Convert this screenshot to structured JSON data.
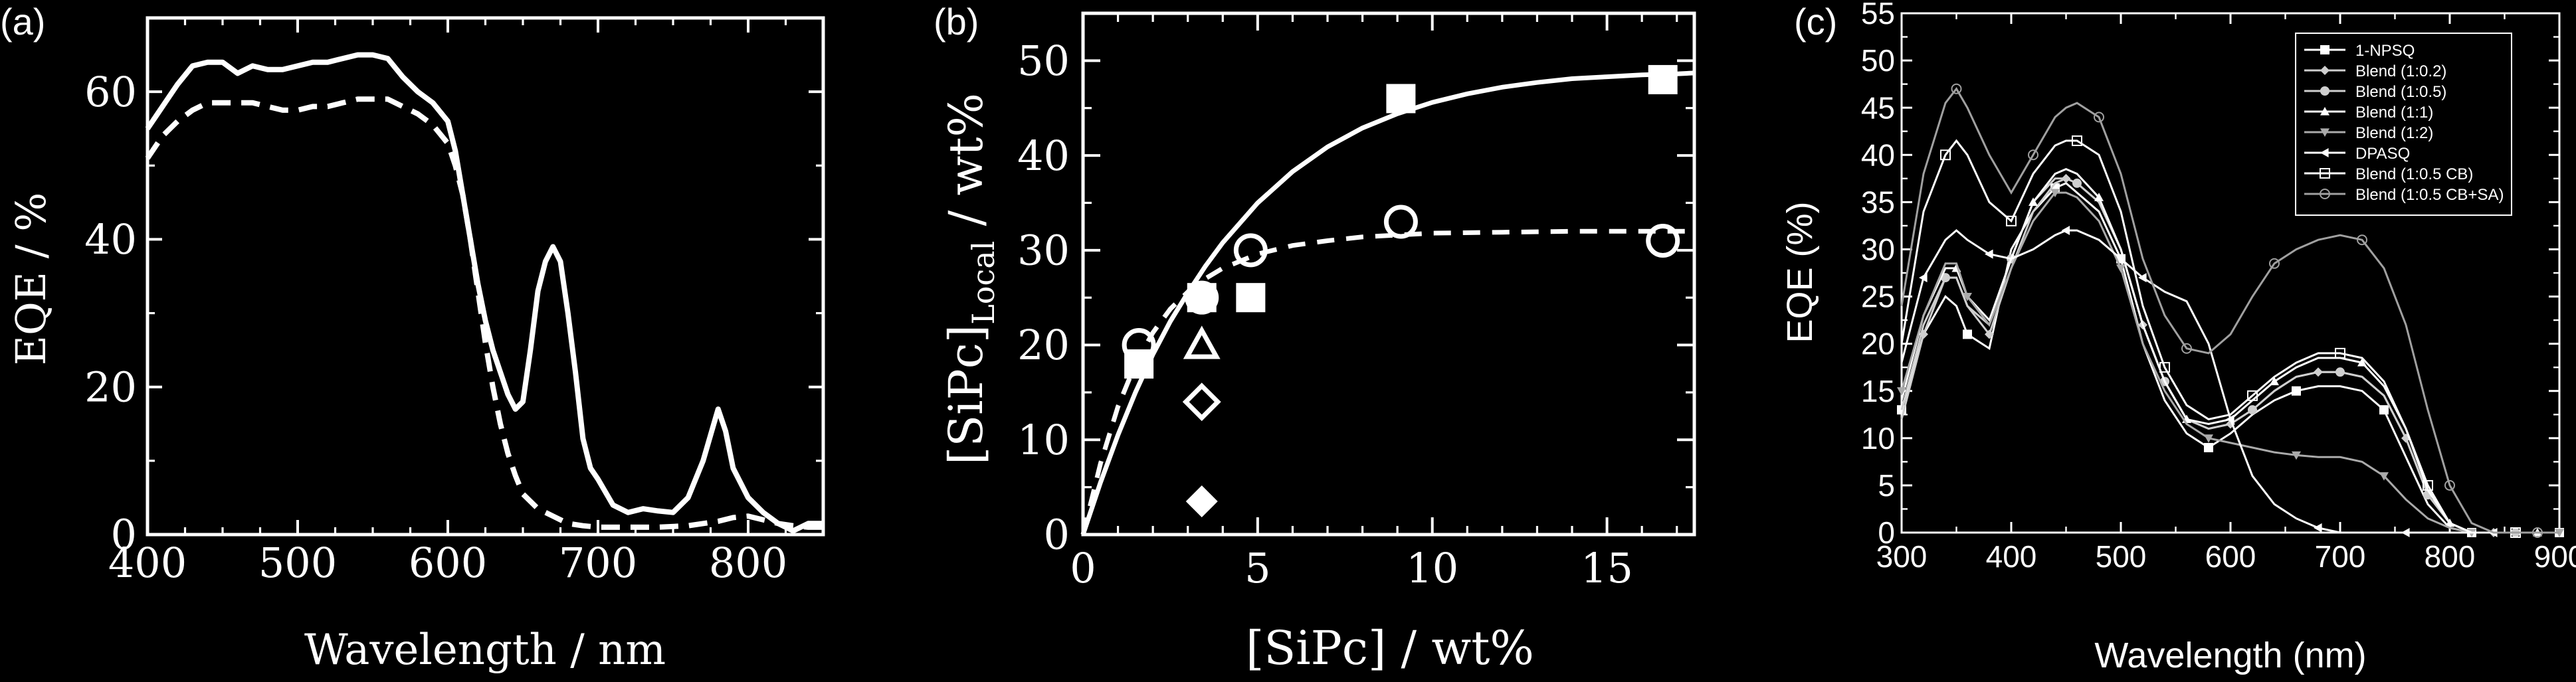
{
  "panels": [
    {
      "label": "(a)",
      "chart_data": {
        "type": "line",
        "title": "",
        "xlabel": "Wavelength / nm",
        "ylabel": "EQE / %",
        "xlim": [
          400,
          850
        ],
        "ylim": [
          0,
          70
        ],
        "xticks": [
          "400",
          "500",
          "600",
          "700",
          "800"
        ],
        "yticks": [
          "0",
          "20",
          "40",
          "60"
        ],
        "grid": false,
        "series": [
          {
            "style": "solid",
            "color": "#ffffff",
            "x": [
              400,
              410,
              420,
              430,
              440,
              450,
              460,
              470,
              480,
              490,
              500,
              510,
              520,
              530,
              540,
              550,
              560,
              570,
              580,
              590,
              600,
              605,
              610,
              615,
              620,
              625,
              630,
              635,
              640,
              645,
              650,
              655,
              660,
              665,
              670,
              675,
              680,
              685,
              690,
              695,
              700,
              710,
              720,
              730,
              740,
              750,
              760,
              770,
              780,
              785,
              790,
              800,
              810,
              820,
              830,
              840,
              850
            ],
            "y": [
              55,
              58,
              61,
              63.5,
              64,
              64,
              62.5,
              63.5,
              63,
              63,
              63.5,
              64,
              64,
              64.5,
              65,
              65,
              64.5,
              62,
              60,
              58.5,
              56,
              52,
              46,
              40,
              34,
              29,
              25,
              22,
              19,
              17,
              18,
              25,
              33,
              37,
              39,
              37,
              30,
              22,
              13,
              9,
              7.5,
              4,
              3,
              3.5,
              3.2,
              3,
              5,
              10,
              17,
              14,
              9,
              5,
              3,
              1.5,
              0.5,
              1.5,
              1.5
            ]
          },
          {
            "style": "dashed",
            "color": "#ffffff",
            "x": [
              400,
              410,
              420,
              430,
              440,
              450,
              460,
              470,
              480,
              490,
              500,
              510,
              520,
              530,
              540,
              550,
              560,
              570,
              580,
              590,
              600,
              605,
              610,
              615,
              620,
              625,
              630,
              635,
              640,
              645,
              650,
              660,
              670,
              680,
              690,
              700,
              720,
              740,
              760,
              780,
              790,
              800,
              810,
              820,
              830,
              840,
              850
            ],
            "y": [
              51,
              54,
              56,
              57.5,
              58.5,
              58.5,
              58.5,
              58.5,
              58,
              57.5,
              57.5,
              58,
              58,
              58.5,
              59,
              59,
              59,
              58,
              57,
              55.5,
              53,
              50,
              46,
              40,
              33,
              26,
              20,
              15,
              11,
              8,
              5.5,
              3.5,
              2.5,
              1.5,
              1.2,
              1,
              1,
              1,
              1.2,
              1.8,
              2.3,
              2.5,
              2,
              1.5,
              1.2,
              1,
              1
            ]
          }
        ]
      }
    },
    {
      "label": "(b)",
      "chart_data": {
        "type": "scatter",
        "title": "",
        "xlabel": "[SiPc] / wt%",
        "ylabel_main": "[SiPc]",
        "ylabel_sub": "Local",
        "ylabel_tail": " / wt%",
        "xlim": [
          0,
          17.5
        ],
        "ylim": [
          0,
          55
        ],
        "xticks": [
          "0",
          "5",
          "10",
          "15"
        ],
        "yticks": [
          "0",
          "10",
          "20",
          "30",
          "40",
          "50"
        ],
        "grid": false,
        "series": [
          {
            "marker": "filled-square",
            "x": [
              1.6,
              3.4,
              4.8,
              9.1,
              16.6
            ],
            "y": [
              18,
              25,
              25,
              46,
              48
            ]
          },
          {
            "marker": "open-circle",
            "x": [
              1.6,
              3.4,
              4.8,
              9.1,
              16.6
            ],
            "y": [
              20,
              25,
              30,
              33,
              31
            ]
          },
          {
            "marker": "open-triangle",
            "x": [
              3.4
            ],
            "y": [
              20
            ]
          },
          {
            "marker": "open-diamond",
            "x": [
              3.4
            ],
            "y": [
              14
            ]
          },
          {
            "marker": "filled-diamond",
            "x": [
              3.4
            ],
            "y": [
              3.5
            ]
          }
        ],
        "fits": [
          {
            "style": "solid",
            "x": [
              0,
              0.5,
              1,
              1.5,
              2,
              2.5,
              3,
              3.5,
              4,
              5,
              6,
              7,
              8,
              9,
              10,
              11,
              12,
              13,
              14,
              15,
              16,
              17,
              17.5
            ],
            "y": [
              0,
              5.5,
              10.5,
              15,
              19,
              22.5,
              25.5,
              28.3,
              30.8,
              35,
              38.3,
              40.9,
              42.9,
              44.4,
              45.6,
              46.5,
              47.2,
              47.7,
              48.1,
              48.3,
              48.5,
              48.6,
              48.7
            ]
          },
          {
            "style": "dashed",
            "x": [
              0,
              0.5,
              1,
              1.5,
              2,
              2.5,
              3,
              3.5,
              4,
              5,
              6,
              7,
              8,
              9,
              10,
              12,
              14,
              16,
              17.5
            ],
            "y": [
              0,
              7.5,
              13.5,
              18,
              21.3,
              23.8,
              25.6,
              27,
              28.1,
              29.6,
              30.5,
              31,
              31.4,
              31.6,
              31.8,
              31.9,
              32,
              32,
              32
            ]
          }
        ]
      }
    },
    {
      "label": "(c)",
      "chart_data": {
        "type": "line",
        "title": "",
        "xlabel": "Wavelength (nm)",
        "ylabel": "EQE (%)",
        "xlim": [
          300,
          900
        ],
        "ylim": [
          0,
          55
        ],
        "xticks": [
          "300",
          "400",
          "500",
          "600",
          "700",
          "800",
          "900"
        ],
        "yticks": [
          "0",
          "5",
          "10",
          "15",
          "20",
          "25",
          "30",
          "35",
          "40",
          "45",
          "50",
          "55"
        ],
        "grid": false,
        "legend_position": "top-right",
        "x": [
          300,
          320,
          340,
          350,
          360,
          380,
          400,
          420,
          440,
          450,
          460,
          480,
          500,
          520,
          540,
          560,
          580,
          600,
          620,
          640,
          660,
          680,
          700,
          720,
          740,
          760,
          780,
          800,
          820,
          840,
          860,
          880,
          900
        ],
        "series": [
          {
            "name": "1-NPSQ",
            "marker": "filled-square",
            "color": "#ffffff",
            "y": [
              13,
              21,
              25,
              24,
              21,
              19.5,
              30,
              34,
              36.5,
              37,
              36,
              34,
              29,
              20,
              14,
              10.5,
              9,
              10.5,
              12.5,
              14,
              15,
              15.5,
              15.5,
              15,
              13,
              8,
              3,
              0.5,
              0,
              0,
              0,
              0,
              0
            ]
          },
          {
            "name": "Blend (1:0.2)",
            "marker": "filled-diamond",
            "color": "#cfcfcf",
            "y": [
              12,
              21,
              27,
              27,
              24,
              21,
              28,
              34,
              37,
              37.5,
              37,
              35,
              30,
              22,
              16,
              12,
              11,
              11.5,
              13,
              15,
              16.5,
              17,
              17,
              16.5,
              14.5,
              10,
              4,
              1,
              0,
              0,
              0,
              0,
              0
            ]
          },
          {
            "name": "Blend (1:0.5)",
            "marker": "filled-circle",
            "color": "#cfcfcf",
            "y": [
              13,
              22,
              27,
              27,
              24,
              22,
              29,
              35,
              37.5,
              37.5,
              37,
              35,
              30,
              22,
              16,
              12,
              11,
              11.5,
              13,
              15,
              16.5,
              17,
              17,
              16.5,
              14.5,
              10,
              4,
              1,
              0,
              0,
              0,
              0,
              0
            ]
          },
          {
            "name": "Blend (1:1)",
            "marker": "filled-triangle",
            "color": "#ffffff",
            "y": [
              14,
              23,
              28,
              28,
              25,
              22.5,
              29,
              35,
              38,
              38.5,
              38,
              35.5,
              30,
              22,
              16,
              12,
              11.5,
              12,
              14,
              16,
              17.5,
              18.5,
              18.5,
              18,
              15.5,
              11,
              4.5,
              1,
              0,
              0,
              0,
              0,
              0
            ]
          },
          {
            "name": "Blend (1:2)",
            "marker": "filled-down-triangle",
            "color": "#aaaaaa",
            "y": [
              15,
              23,
              28.5,
              28.5,
              25,
              22,
              28,
              33,
              36,
              36,
              35.5,
              33,
              28,
              20,
              15,
              11.5,
              10,
              9.5,
              9,
              8.5,
              8.2,
              8,
              8,
              7.5,
              6,
              3.5,
              1.5,
              0.5,
              0,
              0,
              0,
              0,
              0
            ]
          },
          {
            "name": "DPASQ",
            "marker": "left-triangle",
            "color": "#ffffff",
            "y": [
              18,
              27,
              31,
              32,
              31,
              29.5,
              29,
              30,
              31.5,
              32,
              32,
              31,
              29,
              27,
              25.5,
              24.5,
              20,
              12,
              6,
              3,
              1.5,
              0.5,
              0,
              0,
              0,
              0,
              0,
              0,
              0,
              0,
              0,
              0,
              0
            ]
          },
          {
            "name": "Blend (1:0.5 CB)",
            "marker": "open-square",
            "color": "#ffffff",
            "y": [
              20,
              34,
              40,
              41.5,
              40,
              35,
              33,
              38,
              41,
              41.5,
              41.5,
              40,
              34,
              24,
              17.5,
              13.5,
              12,
              12.5,
              14.5,
              16.5,
              18,
              19,
              19,
              18.5,
              16,
              11,
              5,
              1,
              0,
              0,
              0,
              0,
              0
            ]
          },
          {
            "name": "Blend (1:0.5 CB+SA)",
            "marker": "open-circle",
            "color": "#a0a0a0",
            "y": [
              24,
              38,
              45.5,
              47,
              45,
              40,
              36,
              40,
              44,
              45,
              45.5,
              44,
              38,
              29,
              23,
              19.5,
              19,
              21,
              25,
              28.5,
              30,
              31,
              31.5,
              31,
              28,
              22,
              13,
              5,
              1,
              0,
              0,
              0,
              0
            ]
          }
        ]
      }
    }
  ]
}
